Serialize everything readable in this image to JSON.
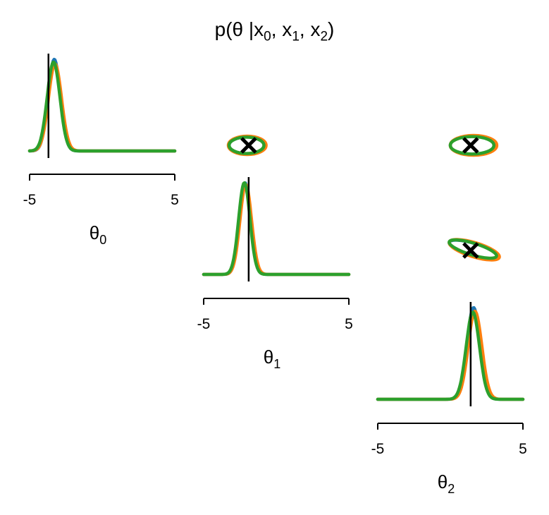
{
  "title": {
    "prefix": "p(θ |x",
    "s0": "0",
    "sep1": ", x",
    "s1": "1",
    "sep2": ", x",
    "s2": "2",
    "suffix": ")"
  },
  "colors": {
    "series_a": "#1f77b4",
    "series_b": "#ff7f0e",
    "series_c": "#2ca02c",
    "reference": "#000000"
  },
  "chart_data": {
    "type": "pairplot",
    "title": "p(θ |x0, x1, x2)",
    "parameters": [
      {
        "symbol": "θ",
        "index": "0",
        "xlim": [
          -5,
          5
        ],
        "ticks": [
          "-5",
          "5"
        ],
        "true_value": -3.7
      },
      {
        "symbol": "θ",
        "index": "1",
        "xlim": [
          -5,
          5
        ],
        "ticks": [
          "-5",
          "5"
        ],
        "true_value": -1.9
      },
      {
        "symbol": "θ",
        "index": "2",
        "xlim": [
          -5,
          5
        ],
        "ticks": [
          "-5",
          "5"
        ],
        "true_value": 1.4
      }
    ],
    "marginals": [
      {
        "param": 0,
        "series": [
          {
            "color": "#1f77b4",
            "mean": -3.3,
            "sd": 0.42,
            "peak": 1.0
          },
          {
            "color": "#ff7f0e",
            "mean": -3.25,
            "sd": 0.45,
            "peak": 0.95
          },
          {
            "color": "#2ca02c",
            "mean": -3.35,
            "sd": 0.44,
            "peak": 0.97
          }
        ]
      },
      {
        "param": 1,
        "series": [
          {
            "color": "#1f77b4",
            "mean": -2.15,
            "sd": 0.38,
            "peak": 1.0
          },
          {
            "color": "#ff7f0e",
            "mean": -2.1,
            "sd": 0.4,
            "peak": 0.98
          },
          {
            "color": "#2ca02c",
            "mean": -2.2,
            "sd": 0.39,
            "peak": 1.0
          }
        ]
      },
      {
        "param": 2,
        "series": [
          {
            "color": "#1f77b4",
            "mean": 1.6,
            "sd": 0.45,
            "peak": 1.0
          },
          {
            "color": "#ff7f0e",
            "mean": 1.7,
            "sd": 0.47,
            "peak": 0.96
          },
          {
            "color": "#2ca02c",
            "mean": 1.55,
            "sd": 0.46,
            "peak": 0.95
          }
        ]
      }
    ],
    "pairs": [
      {
        "x_param": 1,
        "y_param": 0,
        "true_x": -1.9,
        "true_y": -3.7,
        "series": [
          {
            "color": "#1f77b4",
            "cx": -2.0,
            "cy": -3.3,
            "rx": 1.25,
            "ry": 0.6,
            "angle": 0
          },
          {
            "color": "#ff7f0e",
            "cx": -2.0,
            "cy": -3.3,
            "rx": 1.3,
            "ry": 0.65,
            "angle": 0
          },
          {
            "color": "#2ca02c",
            "cx": -2.05,
            "cy": -3.3,
            "rx": 1.2,
            "ry": 0.58,
            "angle": 0
          }
        ]
      },
      {
        "x_param": 2,
        "y_param": 0,
        "true_x": 1.4,
        "true_y": -3.7,
        "series": [
          {
            "color": "#1f77b4",
            "cx": 1.55,
            "cy": -3.3,
            "rx": 1.55,
            "ry": 0.65,
            "angle": 0
          },
          {
            "color": "#ff7f0e",
            "cx": 1.6,
            "cy": -3.3,
            "rx": 1.6,
            "ry": 0.7,
            "angle": 0
          },
          {
            "color": "#2ca02c",
            "cx": 1.5,
            "cy": -3.3,
            "rx": 1.5,
            "ry": 0.62,
            "angle": 0
          }
        ]
      },
      {
        "x_param": 2,
        "y_param": 1,
        "true_x": 1.4,
        "true_y": -1.9,
        "series": [
          {
            "color": "#1f77b4",
            "cx": 1.6,
            "cy": -2.1,
            "rx": 1.75,
            "ry": 0.45,
            "angle": 17
          },
          {
            "color": "#ff7f0e",
            "cx": 1.65,
            "cy": -2.1,
            "rx": 1.8,
            "ry": 0.5,
            "angle": 17
          },
          {
            "color": "#2ca02c",
            "cx": 1.55,
            "cy": -2.05,
            "rx": 1.7,
            "ry": 0.42,
            "angle": 17
          }
        ]
      }
    ]
  }
}
